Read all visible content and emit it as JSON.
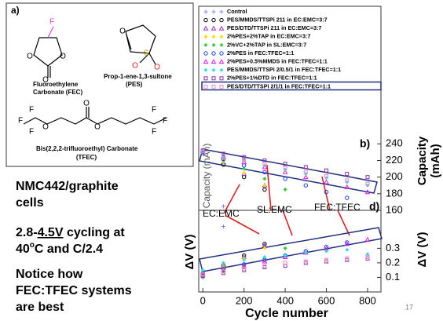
{
  "slide": {
    "panel_a": "a)",
    "fec_name": [
      "Fluoroethylene",
      "Carbonate (FEC)"
    ],
    "pes_name": [
      "Prop-1-ene-1,3-sultone",
      "(PES)"
    ],
    "tfec_name": [
      "Bis(2,2,2-trifluoroethyl) Carbonate",
      "(TFEC)"
    ],
    "atoms": [
      "F",
      "O",
      "O",
      "O",
      "O",
      "S",
      "O",
      "O",
      "F",
      "F",
      "F",
      "O",
      "O",
      "O",
      "F",
      "F",
      "F"
    ],
    "cells": [
      "NMC442/graphite",
      "cells"
    ],
    "cycling": [
      "2.8-",
      "4.5V",
      " cycling at",
      "40",
      "o",
      "C and C/2.4"
    ],
    "notice": [
      "Notice how",
      "FEC:TFEC systems",
      "are best"
    ],
    "page_number": "17"
  },
  "chart_data": [
    {
      "type": "scatter",
      "panel": "b)",
      "ylabel": "Capacity (mAh)",
      "ylabel_right": [
        "Capacity",
        "(mAh)"
      ],
      "xlim": [
        -20,
        865
      ],
      "ylim": [
        160,
        262
      ],
      "yticks": [
        160,
        180,
        200,
        220,
        240
      ],
      "x": [
        0,
        100,
        200,
        300,
        400,
        500,
        600,
        700,
        800
      ],
      "annotations": [
        "EC:EMC",
        "SL:EMC",
        "FEC:TFEC"
      ],
      "series": [
        {
          "name": "Control",
          "color": "#8080ff",
          "marker": "plus",
          "values": [
            228,
            165,
            null,
            null,
            null,
            null,
            null,
            null,
            null
          ]
        },
        {
          "name": "PES/MMDS/TTSPi 211 in EC:EMC=3:7",
          "color": "#000000",
          "marker": "circle",
          "values": [
            232,
            215,
            200,
            185,
            null,
            null,
            null,
            null,
            null
          ]
        },
        {
          "name": "PES/DTD/TTSPi 211 in EC:EMC=3:7",
          "color": "#9933cc",
          "marker": "triangle",
          "values": [
            232,
            218,
            204,
            190,
            null,
            null,
            null,
            null,
            null
          ]
        },
        {
          "name": "2%PES+2%TAP in EC:EMC=3:7",
          "color": "#ffdd00",
          "marker": "diamond",
          "values": [
            232,
            218,
            205,
            190,
            null,
            null,
            null,
            null,
            null
          ]
        },
        {
          "name": "2%VC+2%TAP in SL:EMC=3:7",
          "color": "#33cc33",
          "marker": "diamond",
          "values": [
            230,
            220,
            210,
            198,
            185,
            null,
            null,
            null,
            null
          ]
        },
        {
          "name": "2%PES in FEC:TFEC=1:1",
          "color": "#1a3cff",
          "marker": "circle",
          "values": [
            230,
            222,
            214,
            206,
            198,
            190,
            182,
            175,
            null
          ]
        },
        {
          "name": "2%PES+0.5%MMDS in FEC:TFEC=1:1",
          "color": "#e619e6",
          "marker": "triangle",
          "values": [
            232,
            225,
            218,
            212,
            206,
            200,
            194,
            188,
            182
          ]
        },
        {
          "name": "PES/MMDS/TTSPi  2/0.5/1 in FEC:TFEC=1:1",
          "color": "#33dddd",
          "marker": "diamond",
          "values": [
            231,
            226,
            220,
            214,
            209,
            204,
            199,
            194,
            190
          ]
        },
        {
          "name": "2%PES+1%DTD in FEC:TFEC=1:1",
          "color": "#8833aa",
          "marker": "square",
          "values": [
            232,
            228,
            224,
            220,
            216,
            212,
            208,
            204,
            200
          ]
        },
        {
          "name": "PES/DTD/TTSPi  2/1/1 in FEC:TFEC=1:1",
          "color": "#ee88cc",
          "marker": "square",
          "values": [
            231,
            226,
            221,
            216,
            211,
            206,
            201,
            196,
            192
          ]
        }
      ]
    },
    {
      "type": "scatter",
      "panel": "d)",
      "ylabel": "ΔV (V)",
      "ylabel_right": [
        "ΔV (V)"
      ],
      "xlabel": "Cycle number",
      "xlim": [
        -20,
        865
      ],
      "xticks": [
        0,
        200,
        400,
        600,
        800
      ],
      "ylim": [
        0,
        0.55
      ],
      "yticks": [
        0.1,
        0.2,
        0.3
      ],
      "x": [
        0,
        100,
        200,
        300,
        400,
        500,
        600,
        700,
        800
      ],
      "series": [
        {
          "color": "#8080ff",
          "marker": "plus",
          "values": [
            0.12,
            0.45,
            null,
            null,
            null,
            null,
            null,
            null,
            null
          ]
        },
        {
          "color": "#000000",
          "marker": "circle",
          "values": [
            0.12,
            0.18,
            0.25,
            0.33,
            null,
            null,
            null,
            null,
            null
          ]
        },
        {
          "color": "#9933cc",
          "marker": "triangle",
          "values": [
            0.12,
            0.17,
            0.24,
            0.32,
            null,
            null,
            null,
            null,
            null
          ]
        },
        {
          "color": "#ffdd00",
          "marker": "diamond",
          "values": [
            0.12,
            0.17,
            0.23,
            0.3,
            null,
            null,
            null,
            null,
            null
          ]
        },
        {
          "color": "#33cc33",
          "marker": "diamond",
          "values": [
            0.1,
            0.14,
            0.18,
            0.23,
            0.3,
            null,
            null,
            null,
            null
          ]
        },
        {
          "color": "#1a3cff",
          "marker": "circle",
          "values": [
            0.13,
            0.16,
            0.19,
            0.22,
            0.25,
            0.28,
            0.31,
            0.34,
            null
          ]
        },
        {
          "color": "#e619e6",
          "marker": "triangle",
          "values": [
            0.12,
            0.15,
            0.18,
            0.21,
            0.24,
            0.27,
            0.3,
            0.33,
            0.36
          ]
        },
        {
          "color": "#33dddd",
          "marker": "diamond",
          "values": [
            0.15,
            0.2,
            0.22,
            0.24,
            0.25,
            0.27,
            0.28,
            0.29,
            0.26
          ]
        },
        {
          "color": "#8833aa",
          "marker": "square",
          "values": [
            0.11,
            0.13,
            0.15,
            0.17,
            0.18,
            0.2,
            0.21,
            0.22,
            0.23
          ]
        },
        {
          "color": "#ee88cc",
          "marker": "square",
          "values": [
            0.12,
            0.14,
            0.16,
            0.18,
            0.2,
            0.21,
            0.22,
            0.23,
            0.24
          ]
        }
      ]
    }
  ]
}
